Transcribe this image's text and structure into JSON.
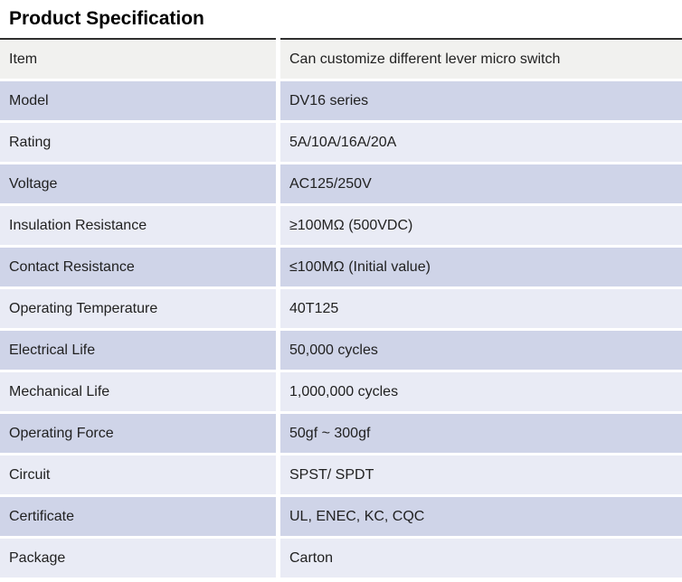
{
  "title": "Product Specification",
  "table": {
    "columns": [
      "item",
      "value"
    ],
    "rows": [
      {
        "item": "Item",
        "value": "Can customize different lever micro switch"
      },
      {
        "item": "Model",
        "value": "DV16 series"
      },
      {
        "item": "Rating",
        "value": "5A/10A/16A/20A"
      },
      {
        "item": "Voltage",
        "value": "AC125/250V"
      },
      {
        "item": "Insulation Resistance",
        "value": "≥100MΩ (500VDC)"
      },
      {
        "item": "Contact Resistance",
        "value": "≤100MΩ (Initial value)"
      },
      {
        "item": "Operating Temperature",
        "value": "40T125"
      },
      {
        "item": "Electrical Life",
        "value": "50,000 cycles"
      },
      {
        "item": "Mechanical Life",
        "value": "1,000,000 cycles"
      },
      {
        "item": "Operating Force",
        "value": "50gf ~ 300gf"
      },
      {
        "item": "Circuit",
        "value": "SPST/ SPDT"
      },
      {
        "item": "Certificate",
        "value": "UL, ENEC, KC, CQC"
      },
      {
        "item": "Package",
        "value": "Carton"
      }
    ],
    "colors": {
      "first_row_bg": "#f1f1ef",
      "row_dark_bg": "#cfd4e8",
      "row_light_bg": "#e9ebf5",
      "top_border": "#2f2f2f",
      "text": "#212121"
    }
  }
}
